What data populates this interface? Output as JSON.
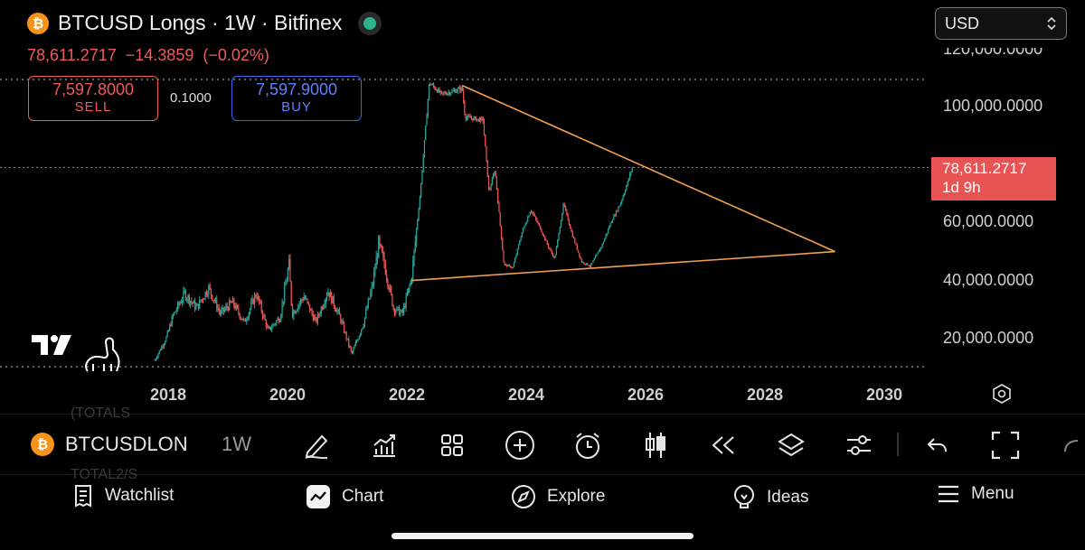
{
  "header": {
    "coin_symbol": "₿",
    "title": "BTCUSD Longs · 1W · Bitfinex",
    "last_price": "78,611.2717",
    "change": "−14.3859",
    "change_pct": "(−0.02%)",
    "price_color": "#f05a5a",
    "status_icon": "live-status-icon"
  },
  "trade": {
    "sell_price": "7,597.8000",
    "sell_label": "SELL",
    "spread": "0.1000",
    "buy_price": "7,597.9000",
    "buy_label": "BUY"
  },
  "currency": {
    "selected": "USD",
    "icon": "chevron-updown-icon"
  },
  "chart_data": {
    "type": "candlestick",
    "series_color_up": "#26a69a",
    "series_color_down": "#ef5350",
    "y_ticks": [
      "120,000.0000",
      "100,000.0000",
      "60,000.0000",
      "40,000.0000",
      "20,000.0000"
    ],
    "x_ticks": [
      "2018",
      "2020",
      "2022",
      "2024",
      "2026",
      "2028",
      "2030"
    ],
    "ylim": [
      10000,
      120000
    ],
    "xlim": [
      2016.5,
      2030.5
    ],
    "last_value_label": "78,611.2717",
    "last_value_time": "1d 9h",
    "trendline_color": "#f0a050",
    "trendlines": [
      {
        "points": [
          [
            2022.0,
            39500
          ],
          [
            2029.1,
            49500
          ]
        ]
      },
      {
        "points": [
          [
            2022.85,
            107000
          ],
          [
            2029.1,
            49500
          ]
        ]
      }
    ],
    "path": [
      [
        2017.7,
        12000
      ],
      [
        2017.9,
        20000
      ],
      [
        2018.0,
        27000
      ],
      [
        2018.2,
        35000
      ],
      [
        2018.4,
        30000
      ],
      [
        2018.6,
        37000
      ],
      [
        2018.8,
        28000
      ],
      [
        2019.0,
        32000
      ],
      [
        2019.2,
        25000
      ],
      [
        2019.4,
        35000
      ],
      [
        2019.6,
        22000
      ],
      [
        2019.8,
        27000
      ],
      [
        2019.95,
        45000
      ],
      [
        2020.0,
        28000
      ],
      [
        2020.2,
        34000
      ],
      [
        2020.4,
        25000
      ],
      [
        2020.6,
        36000
      ],
      [
        2020.8,
        27000
      ],
      [
        2021.0,
        14000
      ],
      [
        2021.2,
        25000
      ],
      [
        2021.35,
        38000
      ],
      [
        2021.45,
        52000
      ],
      [
        2021.55,
        45000
      ],
      [
        2021.7,
        30000
      ],
      [
        2021.85,
        28000
      ],
      [
        2022.0,
        40000
      ],
      [
        2022.15,
        70000
      ],
      [
        2022.3,
        108000
      ],
      [
        2022.5,
        104000
      ],
      [
        2022.7,
        105000
      ],
      [
        2022.85,
        106000
      ],
      [
        2022.9,
        96000
      ],
      [
        2023.2,
        95000
      ],
      [
        2023.3,
        70000
      ],
      [
        2023.4,
        78000
      ],
      [
        2023.55,
        45000
      ],
      [
        2023.7,
        44000
      ],
      [
        2023.85,
        56000
      ],
      [
        2024.0,
        64000
      ],
      [
        2024.15,
        58000
      ],
      [
        2024.3,
        51000
      ],
      [
        2024.4,
        47000
      ],
      [
        2024.55,
        66000
      ],
      [
        2024.7,
        55000
      ],
      [
        2024.85,
        46000
      ],
      [
        2025.0,
        44500
      ],
      [
        2025.2,
        52000
      ],
      [
        2025.35,
        60000
      ],
      [
        2025.5,
        66000
      ],
      [
        2025.6,
        72000
      ],
      [
        2025.7,
        78611
      ]
    ]
  },
  "toolbar": {
    "symbol": "BTCUSDLONGS",
    "timeframe": "1W",
    "ghost_text_1": "(TOTALS",
    "ghost_text_2": "TOTAL2/S"
  },
  "nav": {
    "watchlist": "Watchlist",
    "chart": "Chart",
    "explore": "Explore",
    "ideas": "Ideas",
    "menu": "Menu"
  }
}
